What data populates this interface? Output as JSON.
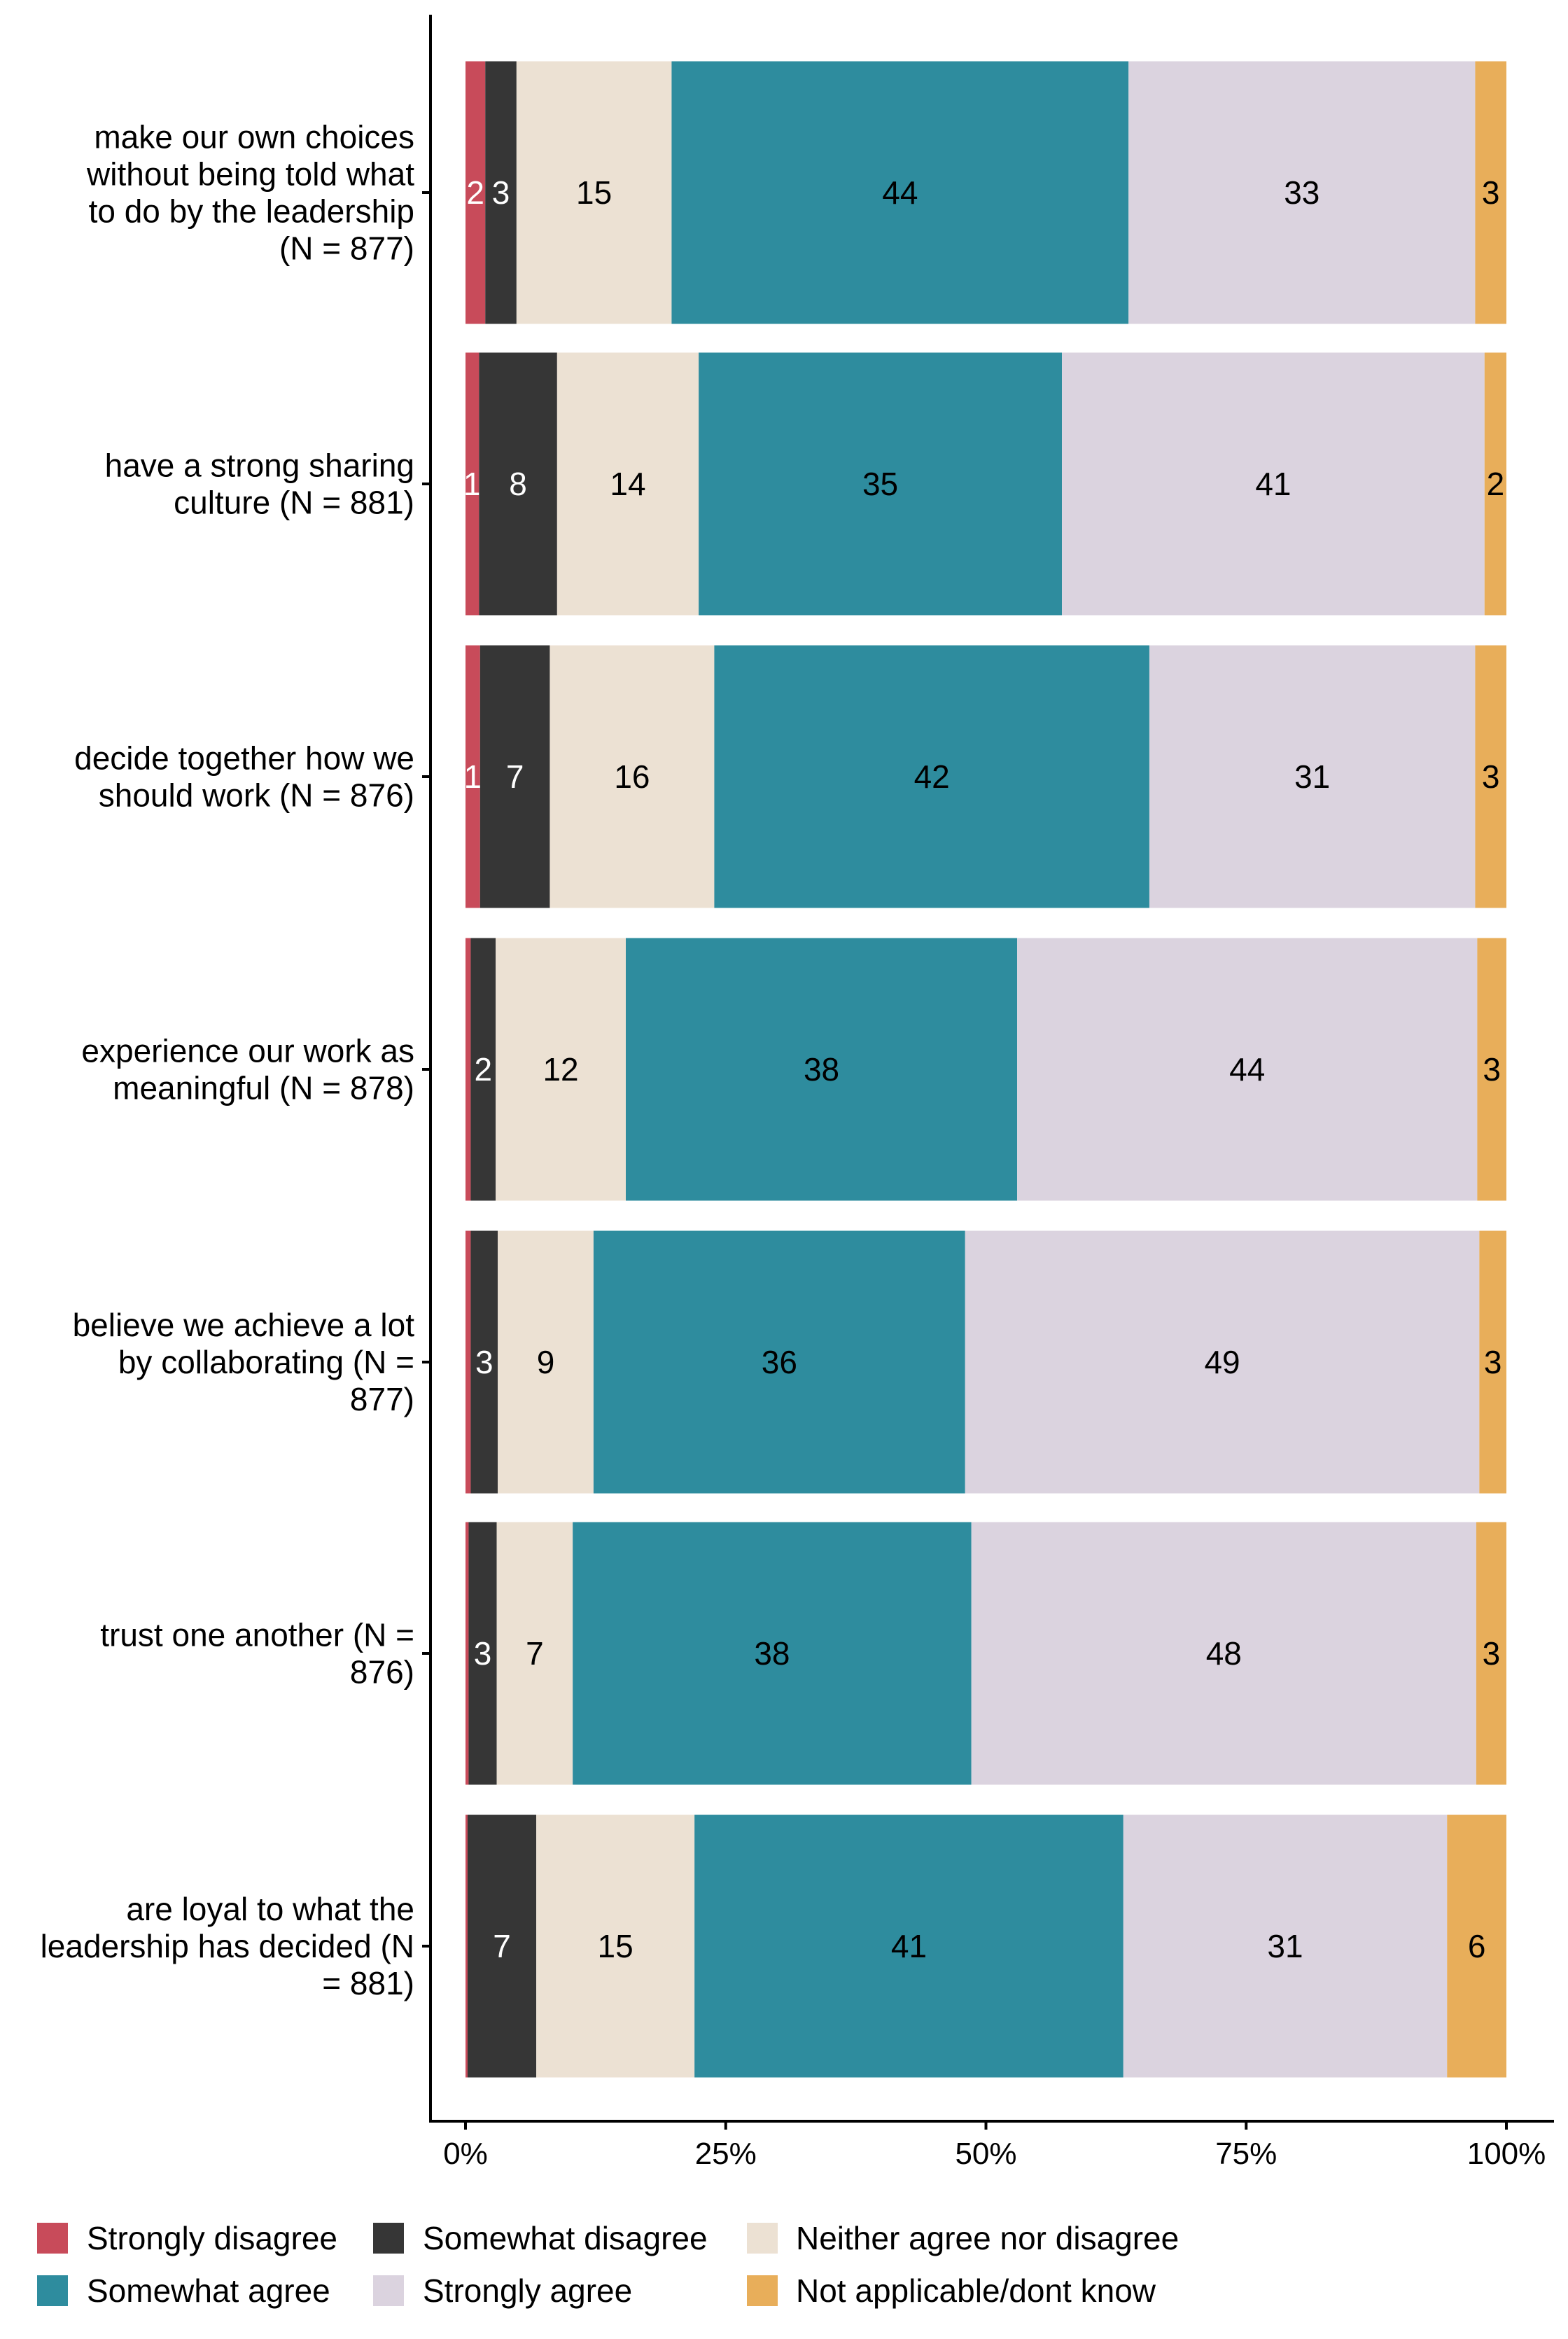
{
  "chart_data": {
    "type": "bar",
    "orientation": "horizontal",
    "stacked": true,
    "title": "",
    "xlabel": "",
    "ylabel": "",
    "xlim": [
      0,
      100
    ],
    "x_ticks": [
      "0%",
      "25%",
      "50%",
      "75%",
      "100%"
    ],
    "grid": false,
    "legend_position": "bottom",
    "categories": [
      [
        "make our own choices",
        "without being told what",
        "to do by the leadership",
        "(N = 877)"
      ],
      [
        "have a strong sharing",
        "culture (N = 881)"
      ],
      [
        "decide together how we",
        "should work (N = 876)"
      ],
      [
        "experience our work as",
        "meaningful (N = 878)"
      ],
      [
        "believe we achieve a lot",
        "by collaborating (N =",
        "877)"
      ],
      [
        "trust one another (N =",
        "876)"
      ],
      [
        "are loyal to what the",
        "leadership has decided (N",
        "= 881)"
      ]
    ],
    "series": [
      {
        "name": "Strongly disagree",
        "color": "#C84B5A",
        "label_color": "#ffffff",
        "values": [
          1.9,
          1.3,
          1.4,
          0.5,
          0.5,
          0.3,
          0.2
        ],
        "labels": [
          "2",
          "1",
          "1",
          "",
          "",
          "",
          ""
        ]
      },
      {
        "name": "Somewhat disagree",
        "color": "#363636",
        "label_color": "#ffffff",
        "values": [
          3.0,
          7.5,
          6.7,
          2.4,
          2.6,
          2.7,
          6.6
        ],
        "labels": [
          "3",
          "8",
          "7",
          "2",
          "3",
          "3",
          "7"
        ]
      },
      {
        "name": "Neither agree nor disagree",
        "color": "#ECE1D3",
        "label_color": "#000000",
        "values": [
          14.9,
          13.6,
          15.8,
          12.5,
          9.2,
          7.3,
          15.2
        ],
        "labels": [
          "15",
          "14",
          "16",
          "12",
          "9",
          "7",
          "15"
        ]
      },
      {
        "name": "Somewhat agree",
        "color": "#2E8C9E",
        "label_color": "#000000",
        "values": [
          43.9,
          34.9,
          41.8,
          37.6,
          35.7,
          38.3,
          41.2
        ],
        "labels": [
          "44",
          "35",
          "42",
          "38",
          "36",
          "38",
          "41"
        ]
      },
      {
        "name": "Strongly agree",
        "color": "#DBD3DF",
        "label_color": "#000000",
        "values": [
          33.3,
          40.6,
          31.3,
          44.2,
          49.4,
          48.5,
          31.1
        ],
        "labels": [
          "33",
          "41",
          "31",
          "44",
          "49",
          "48",
          "31"
        ]
      },
      {
        "name": "Not applicable/dont know",
        "color": "#E8AE5A",
        "label_color": "#000000",
        "values": [
          3.0,
          2.1,
          3.0,
          2.8,
          2.6,
          2.9,
          5.7
        ],
        "labels": [
          "3",
          "2",
          "3",
          "3",
          "3",
          "3",
          "6"
        ]
      }
    ]
  }
}
